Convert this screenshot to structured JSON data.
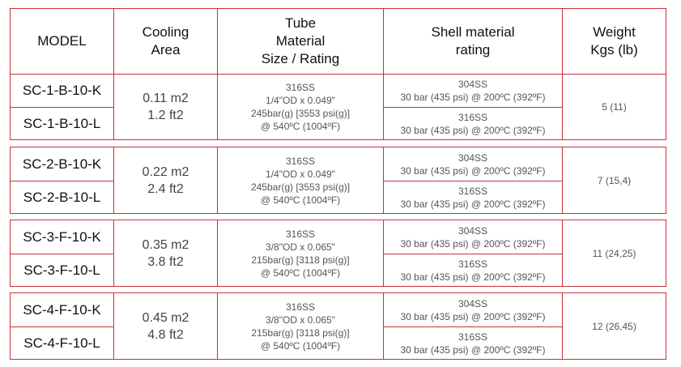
{
  "headers": {
    "model": "MODEL",
    "cooling": [
      "Cooling",
      "Area"
    ],
    "tube": [
      "Tube",
      "Material",
      "Size / Rating"
    ],
    "shell": [
      "Shell material",
      "rating"
    ],
    "weight": [
      "Weight",
      "Kgs (lb)"
    ]
  },
  "groups": [
    {
      "models": [
        "SC-1-B-10-K",
        "SC-1-B-10-L"
      ],
      "area": [
        "0.11 m2",
        "1.2 ft2"
      ],
      "tube": [
        "316SS",
        "1/4\"OD x 0.049\"",
        "245bar(g) [3553 psi(g)]",
        "@ 540ºC (1004ºF)"
      ],
      "shell": [
        [
          "304SS",
          "30 bar (435 psi) @ 200ºC (392ºF)"
        ],
        [
          "316SS",
          "30 bar (435 psi) @ 200ºC (392ºF)"
        ]
      ],
      "weight": "5 (11)"
    },
    {
      "models": [
        "SC-2-B-10-K",
        "SC-2-B-10-L"
      ],
      "area": [
        "0.22 m2",
        "2.4 ft2"
      ],
      "tube": [
        "316SS",
        "1/4\"OD x 0.049\"",
        "245bar(g) [3553 psi(g)]",
        "@ 540ºC (1004ºF)"
      ],
      "shell": [
        [
          "304SS",
          "30 bar (435 psi) @ 200ºC (392ºF)"
        ],
        [
          "316SS",
          "30 bar (435 psi) @ 200ºC (392ºF)"
        ]
      ],
      "weight": "7 (15,4)"
    },
    {
      "models": [
        "SC-3-F-10-K",
        "SC-3-F-10-L"
      ],
      "area": [
        "0.35 m2",
        "3.8 ft2"
      ],
      "tube": [
        "316SS",
        "3/8\"OD x 0.065\"",
        "215bar(g) [3118 psi(g)]",
        "@ 540ºC (1004ºF)"
      ],
      "shell": [
        [
          "304SS",
          "30 bar (435 psi) @ 200ºC (392ºF)"
        ],
        [
          "316SS",
          "30 bar (435 psi) @ 200ºC (392ºF)"
        ]
      ],
      "weight": "11 (24,25)"
    },
    {
      "models": [
        "SC-4-F-10-K",
        "SC-4-F-10-L"
      ],
      "area": [
        "0.45 m2",
        "4.8 ft2"
      ],
      "tube": [
        "316SS",
        "3/8\"OD x 0.065\"",
        "215bar(g) [3118 psi(g)]",
        "@ 540ºC (1004ºF)"
      ],
      "shell": [
        [
          "304SS",
          "30 bar (435 psi) @ 200ºC (392ºF)"
        ],
        [
          "316SS",
          "30 bar (435 psi) @ 200ºC (392ºF)"
        ]
      ],
      "weight": "12 (26,45)"
    }
  ]
}
